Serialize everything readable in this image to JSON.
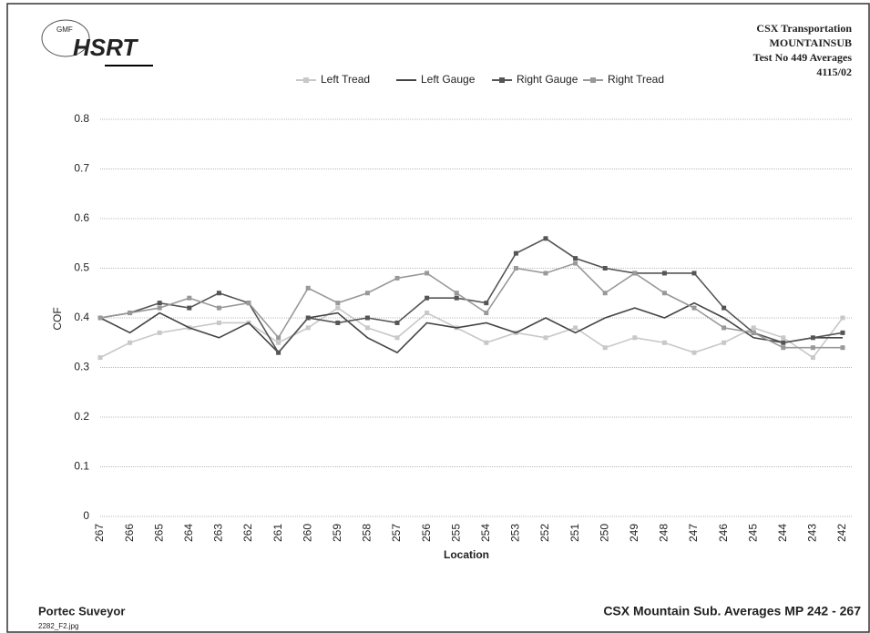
{
  "header": {
    "logo_small": "GMF",
    "logo": "HSRT",
    "lines": [
      "CSX Transportation",
      "MOUNTAINSUB",
      "Test No 449 Averages",
      "4115/02"
    ]
  },
  "footer": {
    "left": "Portec Suveyor",
    "file": "2282_F2.jpg",
    "right": "CSX Mountain Sub. Averages MP 242 - 267"
  },
  "chart_data": {
    "type": "line",
    "xlabel": "Location",
    "ylabel": "COF",
    "categories": [
      "267",
      "266",
      "265",
      "264",
      "263",
      "262",
      "261",
      "260",
      "259",
      "258",
      "257",
      "256",
      "255",
      "254",
      "253",
      "252",
      "251",
      "250",
      "249",
      "248",
      "247",
      "246",
      "245",
      "244",
      "243",
      "242"
    ],
    "series": [
      {
        "name": "Left Tread",
        "color": "#c8c8c8",
        "marker": true,
        "values": [
          0.32,
          0.35,
          0.37,
          0.38,
          0.39,
          0.39,
          0.35,
          0.38,
          0.42,
          0.38,
          0.36,
          0.41,
          0.38,
          0.35,
          0.37,
          0.36,
          0.38,
          0.34,
          0.36,
          0.35,
          0.33,
          0.35,
          0.38,
          0.36,
          0.32,
          0.4
        ]
      },
      {
        "name": "Left Gauge",
        "color": "#444444",
        "marker": false,
        "values": [
          0.4,
          0.37,
          0.41,
          0.38,
          0.36,
          0.39,
          0.33,
          0.4,
          0.41,
          0.36,
          0.33,
          0.39,
          0.38,
          0.39,
          0.37,
          0.4,
          0.37,
          0.4,
          0.42,
          0.4,
          0.43,
          0.4,
          0.36,
          0.35,
          0.36,
          0.36
        ]
      },
      {
        "name": "Right Gauge",
        "color": "#555555",
        "marker": true,
        "values": [
          0.4,
          0.41,
          0.43,
          0.42,
          0.45,
          0.43,
          0.33,
          0.4,
          0.39,
          0.4,
          0.39,
          0.44,
          0.44,
          0.43,
          0.53,
          0.56,
          0.52,
          0.5,
          0.49,
          0.49,
          0.49,
          0.42,
          0.37,
          0.35,
          0.36,
          0.37
        ]
      },
      {
        "name": "Right Tread",
        "color": "#999999",
        "marker": true,
        "values": [
          0.4,
          0.41,
          0.42,
          0.44,
          0.42,
          0.43,
          0.36,
          0.46,
          0.43,
          0.45,
          0.48,
          0.49,
          0.45,
          0.41,
          0.5,
          0.49,
          0.51,
          0.45,
          0.49,
          0.45,
          0.42,
          0.38,
          0.37,
          0.34,
          0.34,
          0.34
        ]
      }
    ],
    "ylim": [
      0,
      0.8
    ],
    "yticks": [
      0,
      0.1,
      0.2,
      0.3,
      0.4,
      0.5,
      0.6,
      0.7,
      0.8
    ],
    "grid": true
  }
}
